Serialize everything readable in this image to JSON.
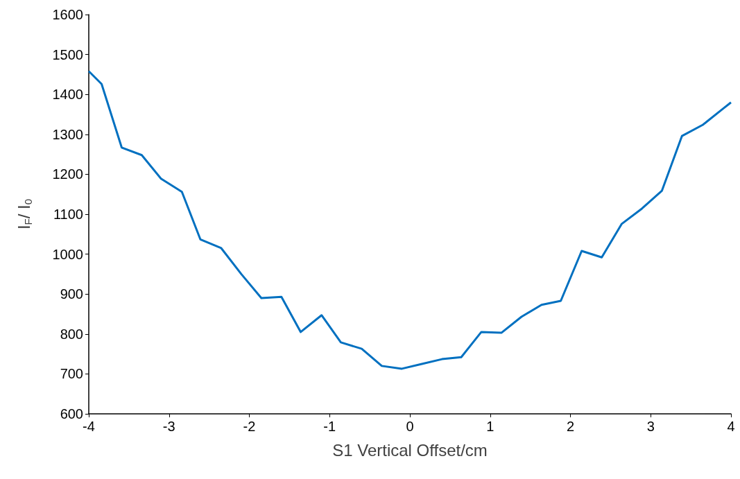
{
  "chart_data": {
    "type": "line",
    "xlabel": "S1 Vertical Offset/cm",
    "ylabel": "I$_{F}$/ I$_{0}$",
    "x": [
      -4,
      -3.84,
      -3.59,
      -3.34,
      -3.1,
      -2.84,
      -2.61,
      -2.35,
      -2.1,
      -1.85,
      -1.6,
      -1.36,
      -1.1,
      -0.86,
      -0.6,
      -0.35,
      -0.1,
      0.15,
      0.4,
      0.64,
      0.89,
      1.14,
      1.39,
      1.64,
      1.88,
      2.14,
      2.39,
      2.64,
      2.89,
      3.14,
      3.39,
      3.65,
      3.9,
      4
    ],
    "series": [
      {
        "color": "#0070c0",
        "values": [
          1458,
          1426,
          1267,
          1248,
          1189,
          1156,
          1037,
          1015,
          950,
          890,
          893,
          805,
          847,
          779,
          763,
          720,
          713,
          725,
          737,
          742,
          805,
          803,
          843,
          873,
          883,
          1008,
          992,
          1076,
          1114,
          1159,
          1296,
          1324,
          1364,
          1380
        ]
      }
    ],
    "xlim": [
      -4,
      4
    ],
    "xticks": [
      -4,
      -3,
      -2,
      -1,
      0,
      1,
      2,
      3,
      4
    ],
    "ylim": [
      600,
      1600
    ],
    "yticks": [
      600,
      700,
      800,
      900,
      1000,
      1100,
      1200,
      1300,
      1400,
      1500,
      1600
    ],
    "grid": false,
    "marker": "none",
    "line_style": "solid"
  }
}
